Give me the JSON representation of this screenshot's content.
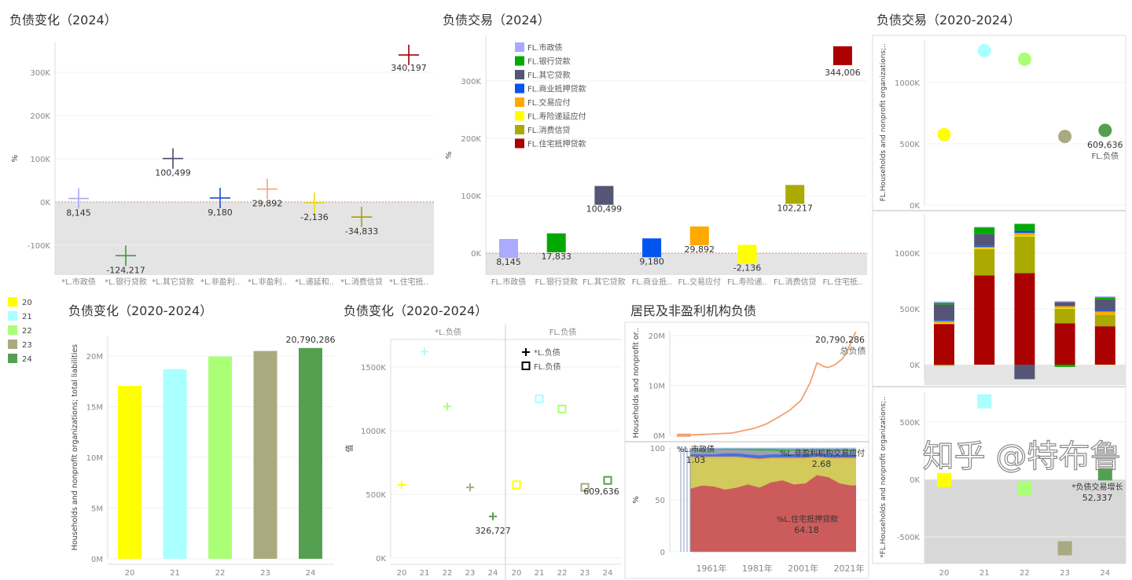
{
  "titles": {
    "a": "负债变化（2024）",
    "b": "负债交易（2024）",
    "c": "负债变化（2020-2024）",
    "d": "负债变化（2020-2024）",
    "e": "居民及非盈利机构负债",
    "f": "负债交易（2020-2024）"
  },
  "year_legend": [
    {
      "label": "20",
      "color": "#ffff00"
    },
    {
      "label": "21",
      "color": "#aaffff"
    },
    {
      "label": "22",
      "color": "#aaff77"
    },
    {
      "label": "23",
      "color": "#aaaa80"
    },
    {
      "label": "24",
      "color": "#55a050"
    }
  ],
  "watermark": "知乎 @特布鲁",
  "chart_data": [
    {
      "id": "a",
      "type": "scatter",
      "marker": "cross",
      "ylabel": "%",
      "ylim": [
        -170000,
        370000
      ],
      "yticks": [
        {
          "v": -100000,
          "l": "-100K"
        },
        {
          "v": 0,
          "l": "0K"
        },
        {
          "v": 100000,
          "l": "100K"
        },
        {
          "v": 200000,
          "l": "200K"
        },
        {
          "v": 300000,
          "l": "300K"
        }
      ],
      "categories": [
        "*L.市政债",
        "*L.银行贷款",
        "*L.其它贷款",
        "*L.非盈利..",
        "*L.非盈利..",
        "*L.递延和..",
        "*L.消费信贷",
        "*L.住宅抵.."
      ],
      "values": [
        8145,
        -124217,
        100499,
        9180,
        29892,
        -2136,
        -34833,
        340197
      ],
      "labels": [
        "8,145",
        "-124,217",
        "100,499",
        "9,180",
        "29,892",
        "-2,136",
        "-34,833",
        "340,197"
      ],
      "colors": [
        "#a9a9f0",
        "#3a9a3a",
        "#4a4a6a",
        "#1a4fd0",
        "#f5a57a",
        "#f0e000",
        "#a8a000",
        "#a00000"
      ]
    },
    {
      "id": "b",
      "type": "scatter",
      "marker": "square",
      "ylabel": "%",
      "ylim": [
        -40000,
        380000
      ],
      "yticks": [
        {
          "v": 0,
          "l": "0K"
        },
        {
          "v": 100000,
          "l": "100K"
        },
        {
          "v": 200000,
          "l": "200K"
        },
        {
          "v": 300000,
          "l": "300K"
        }
      ],
      "categories": [
        "FL.市政债",
        "FL.银行贷款",
        "FL.其它贷款",
        "FL.商业抵..",
        "FL.交易应付",
        "FL.寿险递..",
        "FL.消费信贷",
        "FL.住宅抵.."
      ],
      "values": [
        8145,
        17833,
        100499,
        9180,
        29892,
        -2136,
        102217,
        344006
      ],
      "labels": [
        "8,145",
        "17,833",
        "100,499",
        "9,180",
        "29,892",
        "-2,136",
        "102,217",
        "344,006"
      ],
      "legend": [
        "FL.市政债",
        "FL.银行贷款",
        "FL.其它贷款",
        "FL.商业抵押贷款",
        "FL.交易应付",
        "FL.寿险递延应付",
        "FL.消费信贷",
        "FL.住宅抵押贷款"
      ],
      "legend_position": "top-left",
      "colors": [
        "#aaaaff",
        "#00aa00",
        "#555577",
        "#0055ee",
        "#ffaa00",
        "#ffff00",
        "#aaaa00",
        "#aa0000"
      ]
    },
    {
      "id": "c",
      "type": "bar",
      "ylabel": "Households and nonprofit organizations; total liabilities",
      "ylim": [
        0,
        22000000
      ],
      "yticks": [
        {
          "v": 0,
          "l": "0M"
        },
        {
          "v": 5000000,
          "l": "5M"
        },
        {
          "v": 10000000,
          "l": "10M"
        },
        {
          "v": 15000000,
          "l": "15M"
        },
        {
          "v": 20000000,
          "l": "20M"
        }
      ],
      "categories": [
        "20",
        "21",
        "22",
        "23",
        "24"
      ],
      "values": [
        17050000,
        18700000,
        19950000,
        20500000,
        20790286
      ],
      "value_label": {
        "index": 4,
        "text": "20,790,286"
      }
    },
    {
      "id": "d",
      "type": "scatter",
      "ylabel": "值",
      "ylim": [
        0,
        1720000
      ],
      "yticks": [
        {
          "v": 0,
          "l": "0K"
        },
        {
          "v": 500000,
          "l": "500K"
        },
        {
          "v": 1000000,
          "l": "1000K"
        },
        {
          "v": 1500000,
          "l": "1500K"
        }
      ],
      "panels": [
        "*L.负债",
        "FL.负债"
      ],
      "categories": [
        "20",
        "21",
        "22",
        "23",
        "24"
      ],
      "series": [
        {
          "name": "*L.负债",
          "marker": "cross",
          "values": [
            575000,
            1620000,
            1190000,
            555000,
            326727
          ],
          "label": {
            "index": 4,
            "text": "326,727"
          }
        },
        {
          "name": "FL.负债",
          "marker": "square",
          "values": [
            575000,
            1250000,
            1170000,
            555000,
            609636
          ],
          "label": {
            "index": 4,
            "text": "609,636"
          }
        }
      ],
      "legend_position": "top-right"
    },
    {
      "id": "e1",
      "type": "line",
      "ylabel": "Households and nonprofit or..",
      "ylim": [
        0,
        21000000
      ],
      "yticks": [
        {
          "v": 0,
          "l": "0M"
        },
        {
          "v": 10000000,
          "l": "10M"
        },
        {
          "v": 20000000,
          "l": "20M"
        }
      ],
      "x": [
        1946,
        1952,
        1960,
        1970,
        1980,
        1985,
        1990,
        1995,
        2000,
        2004,
        2007,
        2008,
        2010,
        2012,
        2015,
        2018,
        2020,
        2022,
        2024
      ],
      "y": [
        30000,
        90000,
        250000,
        480000,
        1450000,
        2300000,
        3600000,
        5000000,
        7000000,
        10500000,
        14500000,
        14300000,
        13800000,
        13600000,
        14200000,
        15300000,
        16600000,
        18800000,
        20790286
      ],
      "annotation": {
        "value": "20,790,286",
        "text": "总负债"
      }
    },
    {
      "id": "e2",
      "type": "area",
      "stacked": true,
      "ylabel": "%",
      "ylim": [
        0,
        100
      ],
      "yticks": [
        {
          "v": 0,
          "l": "0"
        },
        {
          "v": 50,
          "l": "50"
        },
        {
          "v": 100,
          "l": "100"
        }
      ],
      "xticks": [
        "1961年",
        "1981年",
        "2001年",
        "2021年"
      ],
      "xtick_years": [
        1961,
        1981,
        2001,
        2021
      ],
      "x": [
        1952,
        1957,
        1962,
        1967,
        1972,
        1977,
        1982,
        1987,
        1992,
        1997,
        2002,
        2007,
        2012,
        2017,
        2022,
        2024
      ],
      "series": [
        {
          "name": "%L.住宅抵押贷款",
          "color": "#cc5c5c",
          "values": [
            61,
            64,
            63,
            60,
            62,
            65,
            62,
            67,
            69,
            65,
            66,
            74,
            72,
            66,
            64,
            64.18
          ]
        },
        {
          "color": "#d2ca5a",
          "values": [
            30,
            27,
            28,
            31,
            29,
            25,
            27,
            23,
            21,
            25,
            24,
            17,
            18,
            24,
            26,
            25.8
          ]
        },
        {
          "color": "#e8a050",
          "values": [
            1,
            1,
            1,
            1,
            1,
            1,
            1,
            1,
            1,
            1,
            1,
            1,
            1,
            1,
            1,
            1
          ]
        },
        {
          "name": "%L.非盈利机构交易应付",
          "color": "#4a70d8",
          "values": [
            2,
            2,
            2,
            3,
            3,
            3,
            3,
            3,
            3,
            3,
            3,
            3,
            3,
            3,
            2.7,
            2.68
          ]
        },
        {
          "color": "#9aa0b8",
          "values": [
            4,
            4,
            4,
            3.5,
            3.5,
            4,
            4.5,
            3.5,
            3,
            3.5,
            3.5,
            3,
            3.5,
            3.5,
            3.6,
            3.6
          ]
        },
        {
          "color": "#4ab04a",
          "values": [
            1,
            1,
            1,
            1,
            1,
            1.5,
            2,
            2,
            2,
            1.5,
            1.5,
            1,
            1.5,
            1.5,
            1.5,
            1.7
          ]
        },
        {
          "name": "%L.市政债",
          "color": "#aabbee",
          "values": [
            1,
            1,
            1,
            0.5,
            0.5,
            0.5,
            0.5,
            0.5,
            1,
            1,
            1,
            1,
            1,
            1,
            1.2,
            1.03
          ]
        }
      ],
      "annotations": [
        {
          "series": "%L.市政债",
          "value": "1.03"
        },
        {
          "series": "%L.非盈利机构交易应付",
          "value": "2.68"
        },
        {
          "series": "%L.住宅抵押贷款",
          "value": "64.18"
        }
      ]
    },
    {
      "id": "f1",
      "type": "scatter",
      "marker": "circle",
      "ylabel": "FL.Households and nonprofit organizations;..",
      "ylim": [
        0,
        1350000
      ],
      "yticks": [
        {
          "v": 0,
          "l": "0K"
        },
        {
          "v": 500000,
          "l": "500K"
        },
        {
          "v": 1000000,
          "l": "1000K"
        }
      ],
      "categories": [
        "20",
        "21",
        "22",
        "23",
        "24"
      ],
      "values": [
        575000,
        1260000,
        1190000,
        560000,
        609636
      ],
      "label": {
        "index": 4,
        "value": "609,636",
        "text": "FL.负债"
      }
    },
    {
      "id": "f2",
      "type": "bar",
      "stacked": true,
      "ylim": [
        -150000,
        1350000
      ],
      "yticks": [
        {
          "v": 0,
          "l": "0K"
        },
        {
          "v": 500000,
          "l": "500K"
        },
        {
          "v": 1000000,
          "l": "1000K"
        }
      ],
      "categories": [
        "20",
        "21",
        "22",
        "23",
        "24"
      ],
      "series": [
        {
          "name": "FL.住宅抵押贷款",
          "color": "#aa0000",
          "values": [
            365000,
            800000,
            820000,
            370000,
            344006
          ]
        },
        {
          "name": "FL.消费信贷",
          "color": "#aaaa00",
          "values": [
            -10000,
            235000,
            330000,
            130000,
            102217
          ]
        },
        {
          "name": "FL.寿险递延应付",
          "color": "#ffff00",
          "values": [
            5000,
            5000,
            5000,
            5000,
            -2136
          ]
        },
        {
          "name": "FL.交易应付",
          "color": "#ffaa00",
          "values": [
            20000,
            15000,
            25000,
            20000,
            29892
          ]
        },
        {
          "name": "FL.商业抵押贷款",
          "color": "#0055ee",
          "values": [
            10000,
            10000,
            20000,
            10000,
            9180
          ]
        },
        {
          "name": "FL.其它贷款",
          "color": "#555577",
          "values": [
            140000,
            105000,
            -130000,
            25000,
            100499
          ]
        },
        {
          "name": "FL.银行贷款",
          "color": "#00aa00",
          "values": [
            15000,
            60000,
            60000,
            -20000,
            17833
          ]
        },
        {
          "name": "FL.市政债",
          "color": "#aaaaff",
          "values": [
            10000,
            5000,
            5000,
            10000,
            8145
          ]
        }
      ]
    },
    {
      "id": "f3",
      "type": "scatter",
      "marker": "square",
      "ylabel": "*FL.Households and nonprofit organizations;..",
      "ylim": [
        -720000,
        760000
      ],
      "yticks": [
        {
          "v": -500000,
          "l": "-500K"
        },
        {
          "v": 0,
          "l": "0K"
        },
        {
          "v": 500000,
          "l": "500K"
        }
      ],
      "categories": [
        "20",
        "21",
        "22",
        "23",
        "24"
      ],
      "values": [
        -5000,
        680000,
        -75000,
        -600000,
        52337
      ],
      "label": {
        "index": 4,
        "text": "*负债交易增长",
        "value": "52,337"
      }
    }
  ]
}
